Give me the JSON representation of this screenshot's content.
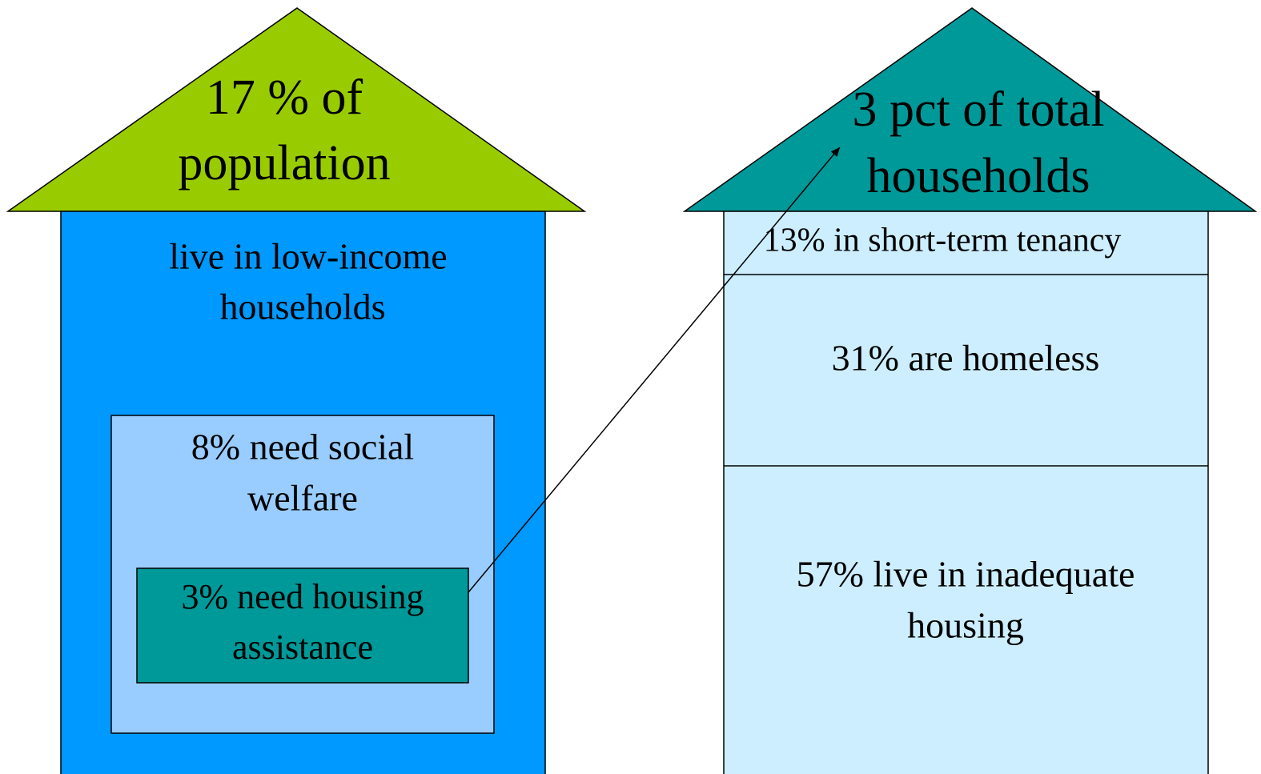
{
  "left_house": {
    "roof": [
      "17 % of",
      "population"
    ],
    "body": [
      "live in low-income",
      "households"
    ],
    "inner": [
      "8% need social",
      "welfare"
    ],
    "innermost": [
      "3% need housing",
      "assistance"
    ]
  },
  "right_house": {
    "roof": [
      "3 pct of total",
      "households"
    ],
    "sections": [
      [
        "13% in short-term tenancy"
      ],
      [
        "31% are homeless"
      ],
      [
        "57% live in inadequate",
        "housing"
      ]
    ]
  }
}
